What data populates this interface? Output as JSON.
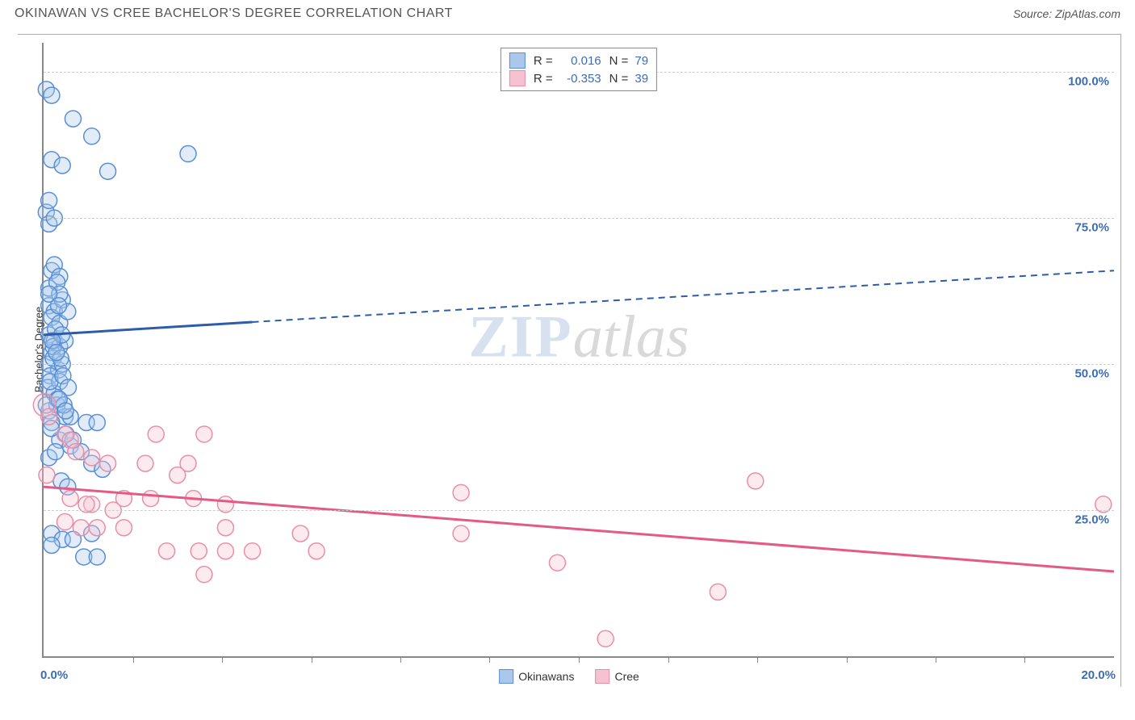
{
  "title": "OKINAWAN VS CREE BACHELOR'S DEGREE CORRELATION CHART",
  "source_prefix": "Source: ",
  "source_name": "ZipAtlas.com",
  "y_axis_label": "Bachelor's Degree",
  "watermark_zip": "ZIP",
  "watermark_atlas": "atlas",
  "chart": {
    "type": "scatter-with-regression",
    "background_color": "#ffffff",
    "axis_color": "#888888",
    "grid_color": "#cccccc",
    "grid_dash": "5,4",
    "tick_label_color": "#3d6db5",
    "tick_label_fontsize": 15,
    "axis_label_fontsize": 13,
    "xlim": [
      0,
      20
    ],
    "ylim": [
      0,
      105
    ],
    "y_ticks": [
      25,
      50,
      75,
      100
    ],
    "y_tick_labels": [
      "25.0%",
      "50.0%",
      "75.0%",
      "100.0%"
    ],
    "x_ticks_minor": [
      1.67,
      3.33,
      5.0,
      6.67,
      8.33,
      10.0,
      11.67,
      13.33,
      15.0,
      16.67,
      18.33
    ],
    "x_tick_labels": {
      "left": "0.0%",
      "right": "20.0%"
    },
    "marker_radius": 10,
    "marker_stroke_width": 1.5,
    "marker_fill_opacity": 0.35,
    "line_width_solid": 3,
    "line_width_dash": 2,
    "dash_pattern": "8,6"
  },
  "series": [
    {
      "key": "okinawans",
      "label": "Okinawans",
      "color_stroke": "#5a8fd6",
      "color_fill": "#a9c8ec",
      "line_color": "#2e5da8",
      "R": "0.016",
      "N": "79",
      "regression": {
        "x1": 0,
        "y1": 55,
        "x2_solid": 3.9,
        "y2_solid": 57.2,
        "x2_dash": 20.0,
        "y2_dash": 66.0
      },
      "points": [
        [
          0.05,
          97
        ],
        [
          0.15,
          96
        ],
        [
          0.55,
          92
        ],
        [
          0.9,
          89
        ],
        [
          0.15,
          85
        ],
        [
          0.35,
          84
        ],
        [
          1.2,
          83
        ],
        [
          2.7,
          86
        ],
        [
          0.05,
          76
        ],
        [
          0.1,
          74
        ],
        [
          0.2,
          75
        ],
        [
          0.15,
          66
        ],
        [
          0.2,
          67
        ],
        [
          0.3,
          65
        ],
        [
          0.1,
          63
        ],
        [
          0.25,
          64
        ],
        [
          0.1,
          60
        ],
        [
          0.2,
          59
        ],
        [
          0.35,
          61
        ],
        [
          0.15,
          58
        ],
        [
          0.3,
          57
        ],
        [
          0.45,
          59
        ],
        [
          0.1,
          55
        ],
        [
          0.2,
          54
        ],
        [
          0.3,
          53
        ],
        [
          0.15,
          52
        ],
        [
          0.4,
          54
        ],
        [
          0.1,
          50
        ],
        [
          0.18,
          51
        ],
        [
          0.28,
          49
        ],
        [
          0.35,
          50
        ],
        [
          0.12,
          48
        ],
        [
          0.08,
          46
        ],
        [
          0.2,
          45
        ],
        [
          0.3,
          47
        ],
        [
          0.1,
          42
        ],
        [
          0.25,
          43
        ],
        [
          0.4,
          41
        ],
        [
          0.15,
          40
        ],
        [
          0.05,
          43
        ],
        [
          0.5,
          41
        ],
        [
          0.8,
          40
        ],
        [
          1.0,
          40
        ],
        [
          0.3,
          37
        ],
        [
          0.5,
          36
        ],
        [
          0.7,
          35
        ],
        [
          0.1,
          34
        ],
        [
          0.9,
          33
        ],
        [
          1.1,
          32
        ],
        [
          0.15,
          21
        ],
        [
          0.35,
          20
        ],
        [
          0.15,
          19
        ],
        [
          0.55,
          20
        ],
        [
          0.9,
          21
        ],
        [
          0.75,
          17
        ],
        [
          1.0,
          17
        ],
        [
          0.1,
          78
        ],
        [
          0.3,
          62
        ],
        [
          0.22,
          56
        ],
        [
          0.18,
          53
        ],
        [
          0.32,
          51
        ],
        [
          0.12,
          47
        ],
        [
          0.26,
          44
        ],
        [
          0.38,
          43
        ],
        [
          0.14,
          39
        ],
        [
          0.42,
          38
        ],
        [
          0.55,
          37
        ],
        [
          0.22,
          35
        ],
        [
          0.33,
          30
        ],
        [
          0.45,
          29
        ],
        [
          0.1,
          62
        ],
        [
          0.28,
          60
        ],
        [
          0.34,
          55
        ],
        [
          0.16,
          54
        ],
        [
          0.24,
          52
        ],
        [
          0.36,
          48
        ],
        [
          0.46,
          46
        ],
        [
          0.29,
          44
        ],
        [
          0.41,
          42
        ]
      ]
    },
    {
      "key": "cree",
      "label": "Cree",
      "color_stroke": "#e88fa8",
      "color_fill": "#f6c2d1",
      "line_color": "#e35a84",
      "R": "-0.353",
      "N": "39",
      "regression": {
        "x1": 0,
        "y1": 29,
        "x2_solid": 20.0,
        "y2_solid": 14.5,
        "x2_dash": 20.0,
        "y2_dash": 14.5
      },
      "extra_marker": {
        "x": 0.02,
        "y": 43,
        "r": 14
      },
      "points": [
        [
          0.1,
          41
        ],
        [
          0.4,
          38
        ],
        [
          0.5,
          37
        ],
        [
          2.1,
          38
        ],
        [
          3.0,
          38
        ],
        [
          0.6,
          35
        ],
        [
          0.9,
          34
        ],
        [
          1.2,
          33
        ],
        [
          1.9,
          33
        ],
        [
          2.7,
          33
        ],
        [
          2.5,
          31
        ],
        [
          0.06,
          31
        ],
        [
          13.3,
          30
        ],
        [
          0.5,
          27
        ],
        [
          0.9,
          26
        ],
        [
          1.5,
          27
        ],
        [
          2.0,
          27
        ],
        [
          2.8,
          27
        ],
        [
          3.4,
          26
        ],
        [
          7.8,
          28
        ],
        [
          19.8,
          26
        ],
        [
          0.4,
          23
        ],
        [
          0.7,
          22
        ],
        [
          1.0,
          22
        ],
        [
          1.5,
          22
        ],
        [
          3.4,
          22
        ],
        [
          7.8,
          21
        ],
        [
          4.8,
          21
        ],
        [
          2.3,
          18
        ],
        [
          2.9,
          18
        ],
        [
          3.4,
          18
        ],
        [
          3.9,
          18
        ],
        [
          5.1,
          18
        ],
        [
          9.6,
          16
        ],
        [
          3.0,
          14
        ],
        [
          12.6,
          11
        ],
        [
          10.5,
          3
        ],
        [
          0.8,
          26
        ],
        [
          1.3,
          25
        ]
      ]
    }
  ],
  "stats_legend": {
    "R_label": "R =",
    "N_label": "N ="
  },
  "bottom_legend_items": [
    "okinawans",
    "cree"
  ]
}
